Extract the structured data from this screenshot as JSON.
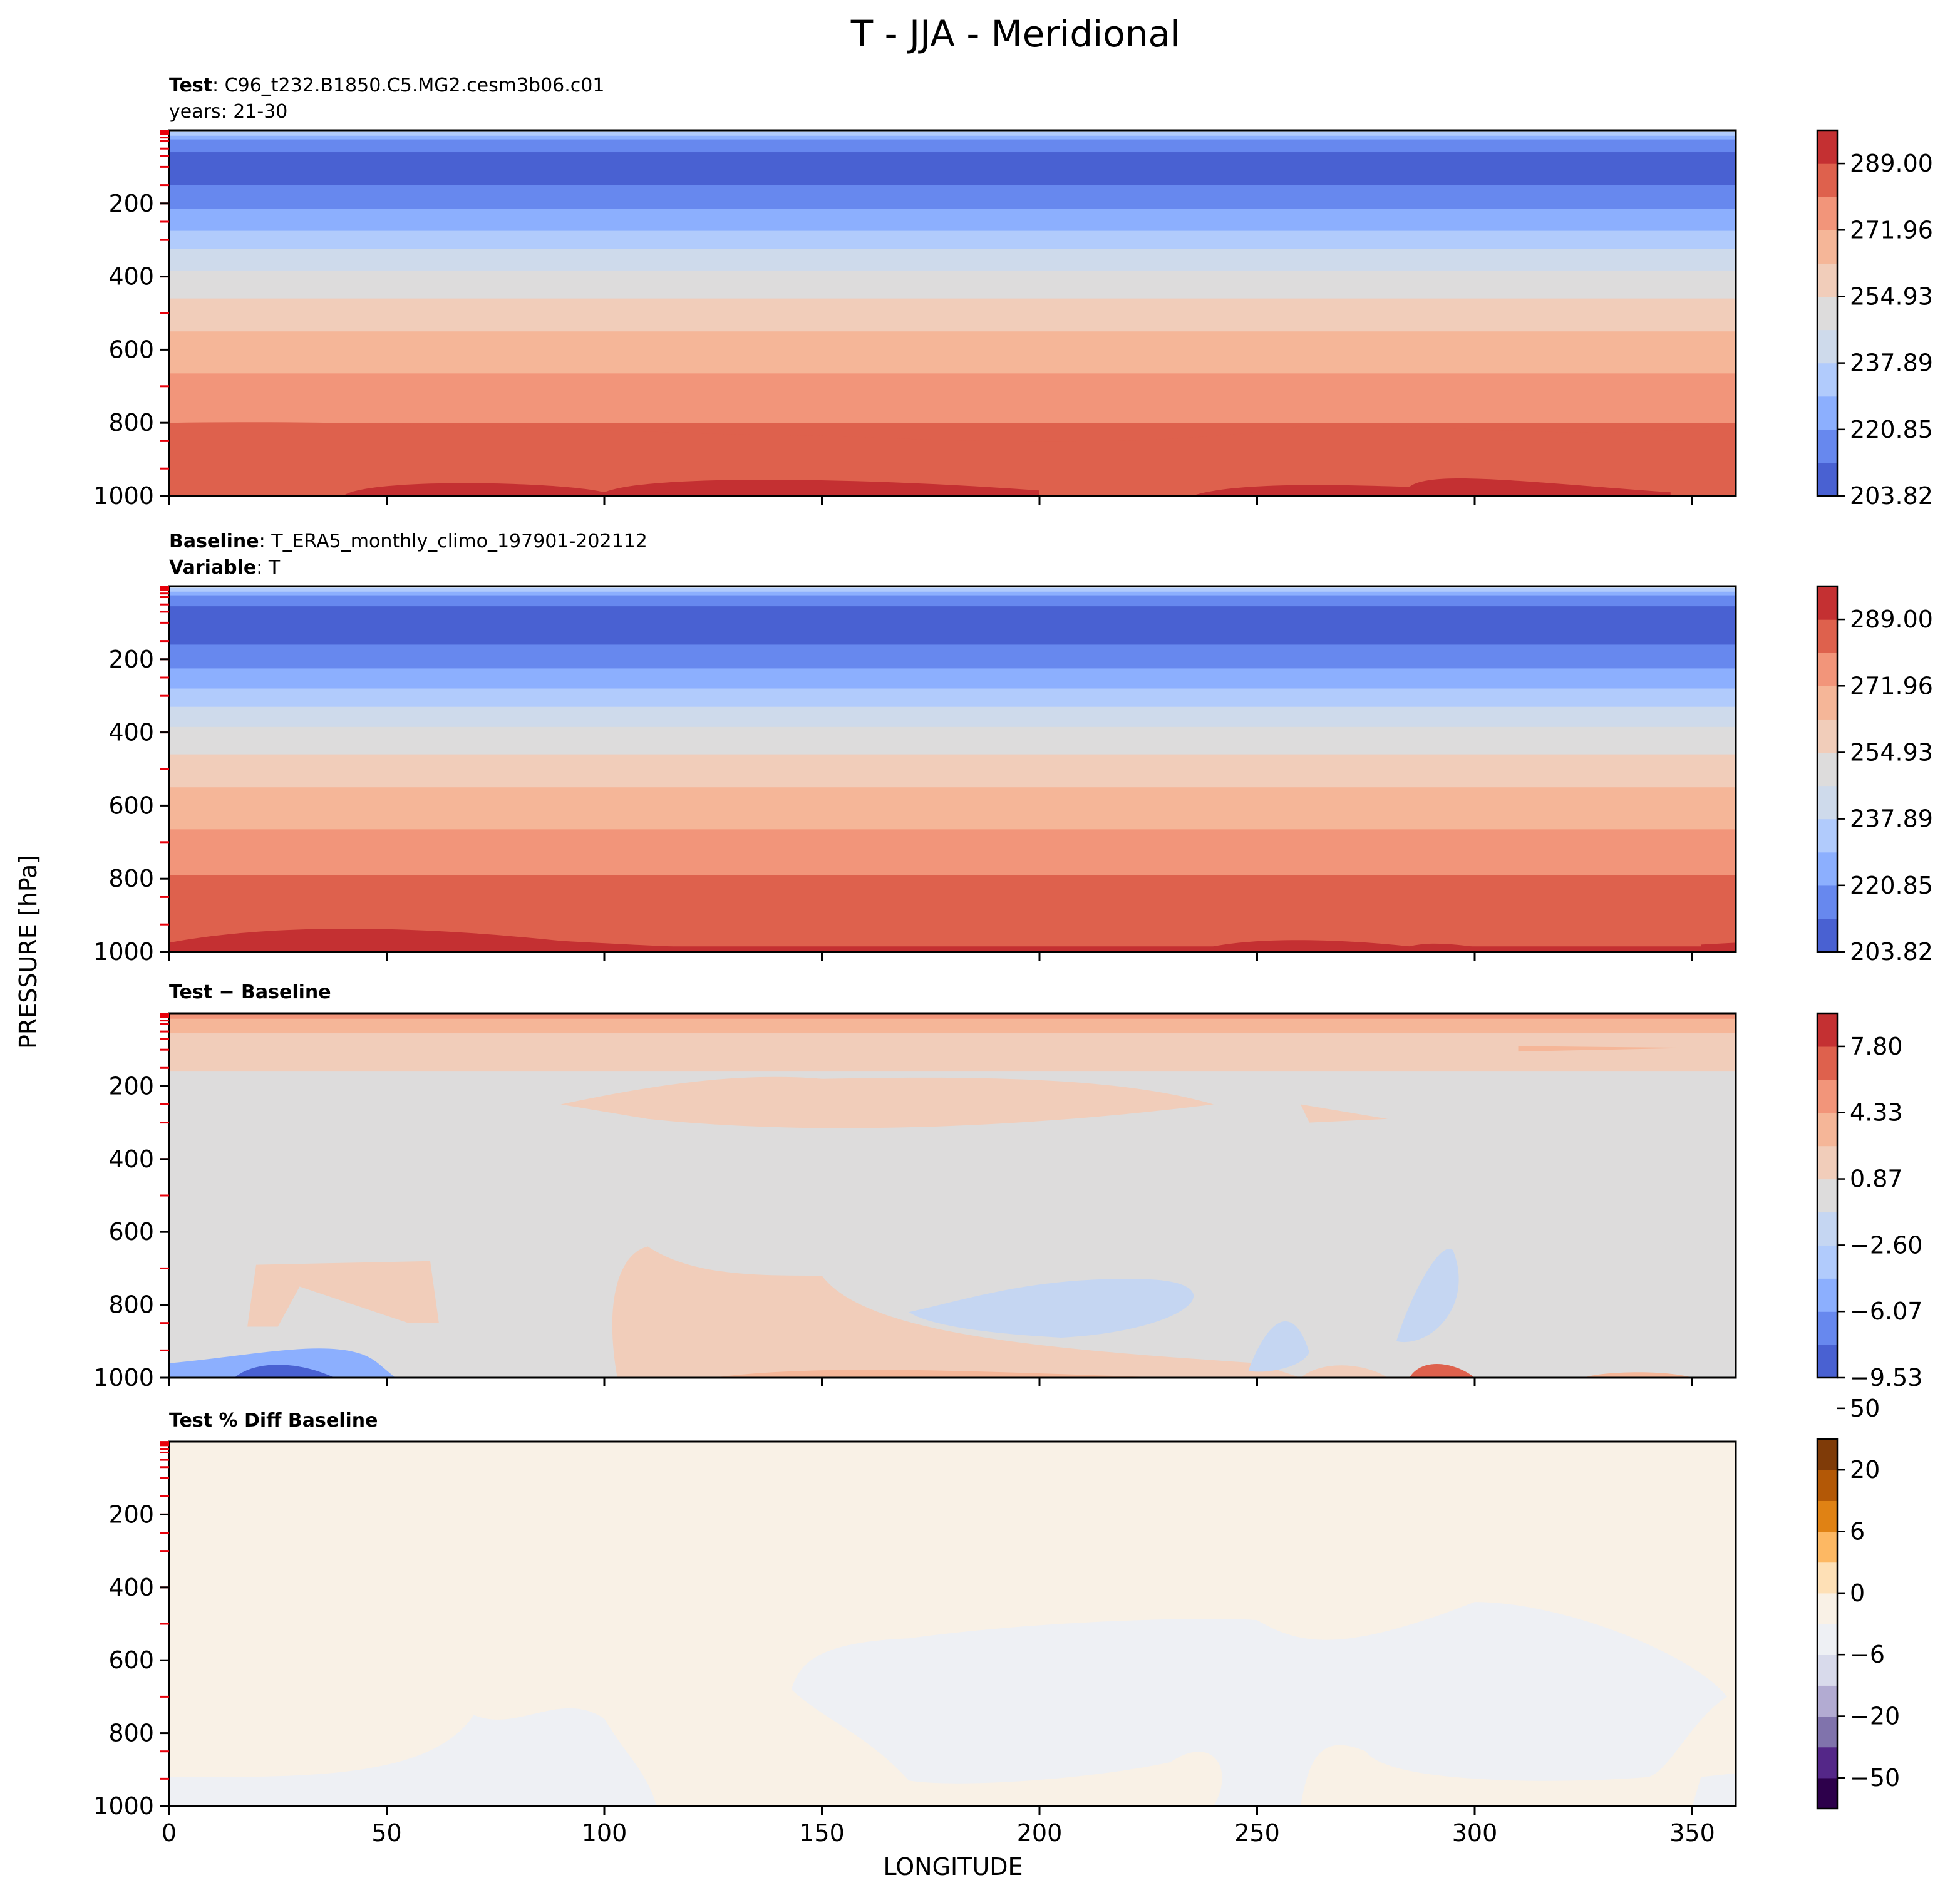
{
  "figure": {
    "title": "T - JJA - Meridional",
    "xlabel": "LONGITUDE",
    "ylabel": "PRESSURE [hPa]"
  },
  "chart_data": [
    {
      "type": "heatmap",
      "panel": "test",
      "header": [
        {
          "bold": "Test",
          "text": ": C96_t232.B1850.C5.MG2.cesm3b06.c01"
        },
        {
          "bold": "",
          "text": "years: 21-30"
        }
      ],
      "xlim": [
        0,
        360
      ],
      "ylim": [
        1000,
        0
      ],
      "yticks": [
        200,
        400,
        600,
        800,
        1000
      ],
      "colormap": "coolwarm",
      "colorbar": {
        "ticks": [
          "203.82",
          "220.85",
          "237.89",
          "254.93",
          "271.96",
          "289.00"
        ],
        "colors": [
          "#4961d2",
          "#6788ee",
          "#8caffe",
          "#b1cbfc",
          "#cedaeb",
          "#dddcdc",
          "#f1cdba",
          "#f5b698",
          "#f2957a",
          "#de614d",
          "#c43032"
        ]
      },
      "bands": [
        {
          "level": 0,
          "color": "#cedaeb"
        },
        {
          "level": 5,
          "color": "#b1cbfc"
        },
        {
          "level": 15,
          "color": "#8caffe"
        },
        {
          "level": 25,
          "color": "#6788ee"
        },
        {
          "level": 60,
          "color": "#4961d2"
        },
        {
          "level": 150,
          "color": "#6788ee"
        },
        {
          "level": 215,
          "color": "#8caffe"
        },
        {
          "level": 275,
          "color": "#b1cbfc"
        },
        {
          "level": 325,
          "color": "#cedaeb"
        },
        {
          "level": 385,
          "color": "#dddcdc"
        },
        {
          "level": 460,
          "color": "#f1cdba"
        },
        {
          "level": 550,
          "color": "#f5b698"
        },
        {
          "level": 665,
          "color": "#f2957a"
        },
        {
          "level": 800,
          "color": "#de614d"
        },
        {
          "level": 975,
          "color": "#c43032"
        }
      ]
    },
    {
      "type": "heatmap",
      "panel": "baseline",
      "header": [
        {
          "bold": "Baseline",
          "text": ": T_ERA5_monthly_climo_197901-202112"
        },
        {
          "bold": "Variable",
          "text": ": T"
        }
      ],
      "xlim": [
        0,
        360
      ],
      "ylim": [
        1000,
        0
      ],
      "yticks": [
        200,
        400,
        600,
        800,
        1000
      ],
      "colormap": "coolwarm",
      "colorbar": {
        "ticks": [
          "203.82",
          "220.85",
          "237.89",
          "254.93",
          "271.96",
          "289.00"
        ],
        "colors": [
          "#4961d2",
          "#6788ee",
          "#8caffe",
          "#b1cbfc",
          "#cedaeb",
          "#dddcdc",
          "#f1cdba",
          "#f5b698",
          "#f2957a",
          "#de614d",
          "#c43032"
        ]
      },
      "bands": [
        {
          "level": 0,
          "color": "#cedaeb"
        },
        {
          "level": 5,
          "color": "#b1cbfc"
        },
        {
          "level": 15,
          "color": "#8caffe"
        },
        {
          "level": 25,
          "color": "#6788ee"
        },
        {
          "level": 55,
          "color": "#4961d2"
        },
        {
          "level": 160,
          "color": "#6788ee"
        },
        {
          "level": 225,
          "color": "#8caffe"
        },
        {
          "level": 280,
          "color": "#b1cbfc"
        },
        {
          "level": 330,
          "color": "#cedaeb"
        },
        {
          "level": 385,
          "color": "#dddcdc"
        },
        {
          "level": 460,
          "color": "#f1cdba"
        },
        {
          "level": 550,
          "color": "#f5b698"
        },
        {
          "level": 665,
          "color": "#f2957a"
        },
        {
          "level": 790,
          "color": "#de614d"
        },
        {
          "level": 985,
          "color": "#c43032"
        }
      ]
    },
    {
      "type": "heatmap",
      "panel": "difference",
      "header": [
        {
          "bold": "Test − Baseline",
          "text": ""
        }
      ],
      "xlim": [
        0,
        360
      ],
      "ylim": [
        1000,
        0
      ],
      "yticks": [
        200,
        400,
        600,
        800,
        1000
      ],
      "colormap": "coolwarm",
      "colorbar": {
        "ticks": [
          "−9.53",
          "−6.07",
          "−2.60",
          "0.87",
          "4.33",
          "7.80"
        ],
        "colors": [
          "#4961d2",
          "#6788ee",
          "#8caffe",
          "#b1cbfc",
          "#c5d6f2",
          "#dddcdc",
          "#f1cdba",
          "#f5b698",
          "#f2957a",
          "#de614d",
          "#c43032"
        ]
      },
      "bands": [
        {
          "level": 0,
          "color": "#f2957a"
        },
        {
          "level": 15,
          "color": "#f5b698"
        },
        {
          "level": 55,
          "color": "#f1cdba"
        },
        {
          "level": 160,
          "color": "#dddcdc"
        }
      ]
    },
    {
      "type": "heatmap",
      "panel": "percent_difference",
      "header": [
        {
          "bold": "Test % Diff Baseline",
          "text": ""
        }
      ],
      "xlim": [
        0,
        360
      ],
      "ylim": [
        1000,
        0
      ],
      "yticks": [
        200,
        400,
        600,
        800,
        1000
      ],
      "xticks": [
        0,
        50,
        100,
        150,
        200,
        250,
        300,
        350
      ],
      "colormap": "PuOr_r",
      "colorbar": {
        "ticks": [
          "−50",
          "−20",
          "−6",
          "0",
          "6",
          "20",
          "50"
        ],
        "colors": [
          "#2d004b",
          "#542788",
          "#8073ac",
          "#b2abd2",
          "#d8daeb",
          "#eef0f4",
          "#f9f1e6",
          "#fee0b6",
          "#fdb863",
          "#e08214",
          "#b35806",
          "#7f3b08"
        ]
      },
      "bands": [
        {
          "level": 0,
          "color": "#f9f1e6"
        }
      ]
    }
  ]
}
